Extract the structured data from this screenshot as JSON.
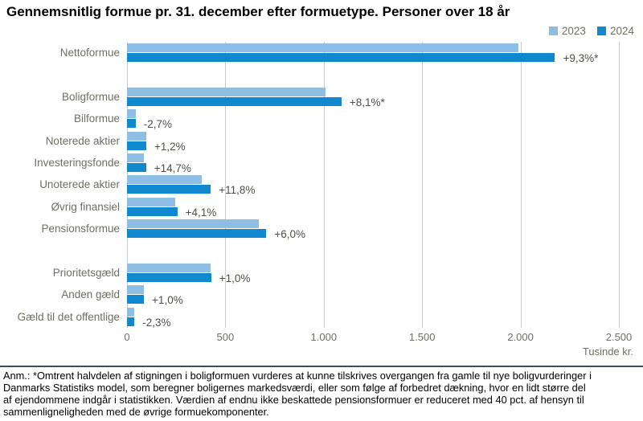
{
  "title": "Gennemsnitlig formue pr. 31. december efter formuetype. Personer over 18 år",
  "legend": [
    {
      "label": "2023",
      "color": "#8EBEE4"
    },
    {
      "label": "2024",
      "color": "#0F88CE"
    }
  ],
  "chart_data": {
    "type": "bar",
    "orientation": "horizontal",
    "unit_label": "Tusinde kr.",
    "xlim": [
      0,
      2500
    ],
    "x_ticks": [
      "0",
      "500",
      "1.000",
      "1.500",
      "2.000",
      "2.500"
    ],
    "x_tick_values": [
      0,
      500,
      1000,
      1500,
      2000,
      2500
    ],
    "grid": true,
    "legend_position": "top-right",
    "series_names": [
      "2023",
      "2024"
    ],
    "rows": [
      {
        "label": "Nettoformue",
        "values": {
          "2023": 1990,
          "2024": 2175
        },
        "change": "+9,3%*"
      },
      {
        "label": "Boligformue",
        "values": {
          "2023": 1008,
          "2024": 1090
        },
        "change": "+8,1%*",
        "gap_before": true
      },
      {
        "label": "Bilformue",
        "values": {
          "2023": 44,
          "2024": 43
        },
        "change": "-2,7%"
      },
      {
        "label": "Noterede aktier",
        "values": {
          "2023": 97,
          "2024": 98
        },
        "change": "+1,2%"
      },
      {
        "label": "Investeringsfonde",
        "values": {
          "2023": 85,
          "2024": 97
        },
        "change": "+14,7%"
      },
      {
        "label": "Unoterede aktier",
        "values": {
          "2023": 381,
          "2024": 426
        },
        "change": "+11,8%"
      },
      {
        "label": "Øvrig finansiel",
        "values": {
          "2023": 246,
          "2024": 256
        },
        "change": "+4,1%"
      },
      {
        "label": "Pensionsformue",
        "values": {
          "2023": 668,
          "2024": 708
        },
        "change": "+6,0%"
      },
      {
        "label": "Prioritetsgæld",
        "values": {
          "2023": 424,
          "2024": 428
        },
        "change": "+1,0%",
        "gap_before": true
      },
      {
        "label": "Anden gæld",
        "values": {
          "2023": 85,
          "2024": 86
        },
        "change": "+1,0%"
      },
      {
        "label": "Gæld til det offentlige",
        "values": {
          "2023": 38,
          "2024": 37
        },
        "change": "-2,3%"
      }
    ]
  },
  "note_lines": [
    "Anm.: *Omtrent halvdelen af stigningen i boligformuen vurderes at kunne tilskrives overgangen fra gamle til nye boligvurderinger i",
    "Danmarks Statistiks model, som beregner boligernes markedsværdi, eller som følge af forbedret dækning, hvor en lidt større del",
    "af ejendommene indgår i statistikken. Værdien af endnu ikke beskattede pensionsformuer er reduceret med 40 pct. af hensyn til",
    "sammenligneligheden med de øvrige formuekomponenter."
  ],
  "colors": {
    "series_2023": "#8EBEE4",
    "series_2024": "#0F88CE",
    "gridline": "#C9C9C9",
    "axis_text": "#6E6E63",
    "change_text": "#4E4E46",
    "separator": "#3C4B55"
  }
}
